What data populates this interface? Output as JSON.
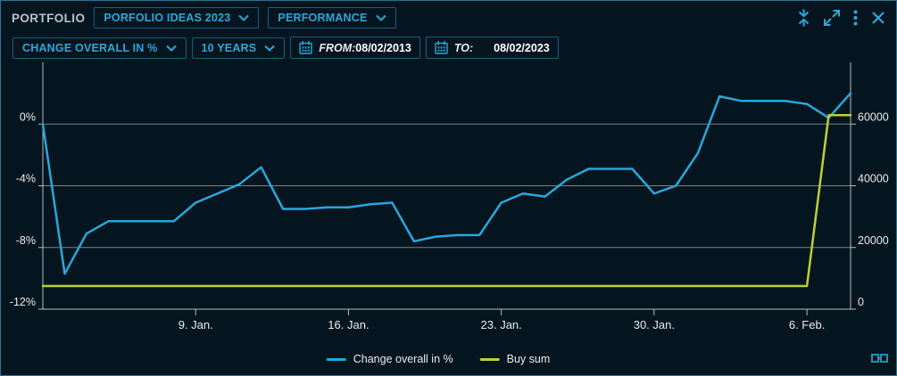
{
  "titlebar": {
    "app_label": "PORTFOLIO",
    "portfolio_dropdown": "PORFOLIO IDEAS 2023",
    "view_dropdown": "PERFORMANCE",
    "window_icons": [
      "collapse-vertical",
      "expand",
      "more-options",
      "close"
    ]
  },
  "toolbar": {
    "metric_dropdown": "CHANGE OVERALL IN %",
    "range_dropdown": "10 YEARS",
    "from_label": "FROM:",
    "from_value": "08/02/2013",
    "to_label": "TO:",
    "to_value": "08/02/2023"
  },
  "legend": {
    "items": [
      {
        "label": "Change overall in %",
        "color": "#29a7dc"
      },
      {
        "label": "Buy sum",
        "color": "#bfcf39"
      }
    ]
  },
  "colors": {
    "background": "#05151f",
    "window_border": "#2b7396",
    "box_border": "#1c5c7e",
    "accent": "#2ea6da",
    "text": "#e9edef",
    "grid": "#c9cfd2",
    "blue_series": "#29a7dc",
    "yellow_series": "#bfcf39"
  },
  "chart_data": {
    "type": "line",
    "title": "Portfolio performance: change overall in % vs buy sum",
    "grid": "horizontal",
    "legend_position": "bottom-center",
    "dates": [
      "2023-01-02",
      "2023-01-03",
      "2023-01-04",
      "2023-01-05",
      "2023-01-06",
      "2023-01-07",
      "2023-01-08",
      "2023-01-09",
      "2023-01-10",
      "2023-01-11",
      "2023-01-12",
      "2023-01-13",
      "2023-01-14",
      "2023-01-15",
      "2023-01-16",
      "2023-01-17",
      "2023-01-18",
      "2023-01-19",
      "2023-01-20",
      "2023-01-21",
      "2023-01-22",
      "2023-01-23",
      "2023-01-24",
      "2023-01-25",
      "2023-01-26",
      "2023-01-27",
      "2023-01-28",
      "2023-01-29",
      "2023-01-30",
      "2023-01-31",
      "2023-02-01",
      "2023-02-02",
      "2023-02-03",
      "2023-02-04",
      "2023-02-05",
      "2023-02-06",
      "2023-02-07",
      "2023-02-08"
    ],
    "x_ticks": [
      {
        "label": "9. Jan.",
        "day_index": 7
      },
      {
        "label": "16. Jan.",
        "day_index": 14
      },
      {
        "label": "23. Jan.",
        "day_index": 21
      },
      {
        "label": "30. Jan.",
        "day_index": 28
      },
      {
        "label": "6. Feb.",
        "day_index": 35
      }
    ],
    "left_axis": {
      "title": "Change overall in %",
      "ticks": [
        "0%",
        "-4%",
        "-8%",
        "-12%"
      ],
      "tick_values": [
        0,
        -4,
        -8,
        -12
      ],
      "range": [
        -12,
        4
      ]
    },
    "right_axis": {
      "title": "Buy sum",
      "ticks": [
        "60000",
        "40000",
        "20000",
        "0"
      ],
      "tick_values": [
        60000,
        40000,
        20000,
        0
      ],
      "range": [
        0,
        80000
      ]
    },
    "series": [
      {
        "name": "Change overall in %",
        "axis": "left",
        "color": "#29a7dc",
        "values": [
          0.0,
          -9.7,
          -7.1,
          -6.3,
          -6.3,
          -6.3,
          -6.3,
          -5.1,
          -4.5,
          -3.9,
          -2.8,
          -5.5,
          -5.5,
          -5.4,
          -5.4,
          -5.2,
          -5.1,
          -7.6,
          -7.3,
          -7.2,
          -7.2,
          -5.1,
          -4.5,
          -4.7,
          -3.6,
          -2.9,
          -2.9,
          -2.9,
          -4.5,
          -4.0,
          -1.9,
          1.8,
          1.5,
          1.5,
          1.5,
          1.3,
          0.4,
          2.0
        ]
      },
      {
        "name": "Buy sum",
        "axis": "right",
        "color": "#bfcf39",
        "values": [
          7500,
          7500,
          7500,
          7500,
          7500,
          7500,
          7500,
          7500,
          7500,
          7500,
          7500,
          7500,
          7500,
          7500,
          7500,
          7500,
          7500,
          7500,
          7500,
          7500,
          7500,
          7500,
          7500,
          7500,
          7500,
          7500,
          7500,
          7500,
          7500,
          7500,
          7500,
          7500,
          7500,
          7500,
          7500,
          7500,
          62900,
          62900
        ]
      }
    ]
  }
}
